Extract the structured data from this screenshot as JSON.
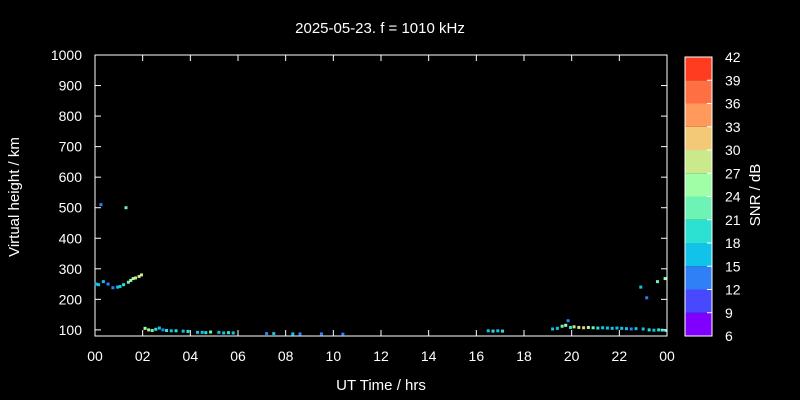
{
  "chart_data": {
    "type": "scatter",
    "title": "2025-05-23. f = 1010 kHz",
    "xlabel": "UT Time / hrs",
    "ylabel": "Virtual height / km",
    "colorbar_label": "SNR / dB",
    "xlim": [
      0,
      24
    ],
    "ylim": [
      80,
      1000
    ],
    "x_ticks": [
      "00",
      "02",
      "04",
      "06",
      "08",
      "10",
      "12",
      "14",
      "16",
      "18",
      "20",
      "22",
      "00"
    ],
    "y_ticks": [
      100,
      200,
      300,
      400,
      500,
      600,
      700,
      800,
      900,
      1000
    ],
    "colorbar_ticks": [
      6,
      9,
      12,
      15,
      18,
      21,
      24,
      27,
      30,
      33,
      36,
      39,
      42
    ],
    "colorbar_range": [
      6,
      42
    ],
    "grid": false,
    "legend": "colorbar-right",
    "background_color": "#000000",
    "text_color": "#ffffff",
    "colorbar_colors": [
      "#8000ff",
      "#4848ff",
      "#2f80f7",
      "#11c3e8",
      "#2de1d2",
      "#6df4b4",
      "#a0fea6",
      "#c9e98a",
      "#f3c978",
      "#ff9a5c",
      "#ff6f44",
      "#ff3b20"
    ],
    "points": [
      {
        "x": 0.05,
        "y": 250,
        "snr": 16
      },
      {
        "x": 0.15,
        "y": 248,
        "snr": 15
      },
      {
        "x": 0.25,
        "y": 510,
        "snr": 12
      },
      {
        "x": 0.35,
        "y": 258,
        "snr": 16
      },
      {
        "x": 0.55,
        "y": 250,
        "snr": 14
      },
      {
        "x": 0.75,
        "y": 238,
        "snr": 13
      },
      {
        "x": 0.95,
        "y": 240,
        "snr": 16
      },
      {
        "x": 1.05,
        "y": 242,
        "snr": 17
      },
      {
        "x": 1.2,
        "y": 248,
        "snr": 19
      },
      {
        "x": 1.3,
        "y": 500,
        "snr": 23
      },
      {
        "x": 1.4,
        "y": 256,
        "snr": 22
      },
      {
        "x": 1.5,
        "y": 262,
        "snr": 24
      },
      {
        "x": 1.6,
        "y": 268,
        "snr": 26
      },
      {
        "x": 1.7,
        "y": 270,
        "snr": 27
      },
      {
        "x": 1.85,
        "y": 275,
        "snr": 28
      },
      {
        "x": 1.95,
        "y": 280,
        "snr": 27
      },
      {
        "x": 2.1,
        "y": 105,
        "snr": 24
      },
      {
        "x": 2.25,
        "y": 100,
        "snr": 27
      },
      {
        "x": 2.4,
        "y": 98,
        "snr": 22
      },
      {
        "x": 2.55,
        "y": 102,
        "snr": 20
      },
      {
        "x": 2.7,
        "y": 106,
        "snr": 17
      },
      {
        "x": 2.85,
        "y": 100,
        "snr": 14
      },
      {
        "x": 3.0,
        "y": 98,
        "snr": 18
      },
      {
        "x": 3.2,
        "y": 97,
        "snr": 16
      },
      {
        "x": 3.4,
        "y": 97,
        "snr": 19
      },
      {
        "x": 3.7,
        "y": 96,
        "snr": 17
      },
      {
        "x": 3.9,
        "y": 95,
        "snr": 18
      },
      {
        "x": 4.3,
        "y": 92,
        "snr": 15
      },
      {
        "x": 4.5,
        "y": 92,
        "snr": 17
      },
      {
        "x": 4.65,
        "y": 91,
        "snr": 19
      },
      {
        "x": 4.85,
        "y": 93,
        "snr": 22
      },
      {
        "x": 5.2,
        "y": 92,
        "snr": 17
      },
      {
        "x": 5.4,
        "y": 90,
        "snr": 16
      },
      {
        "x": 5.6,
        "y": 91,
        "snr": 18
      },
      {
        "x": 5.8,
        "y": 90,
        "snr": 16
      },
      {
        "x": 7.2,
        "y": 88,
        "snr": 14
      },
      {
        "x": 7.5,
        "y": 88,
        "snr": 15
      },
      {
        "x": 8.3,
        "y": 87,
        "snr": 15
      },
      {
        "x": 8.6,
        "y": 87,
        "snr": 14
      },
      {
        "x": 9.5,
        "y": 87,
        "snr": 13
      },
      {
        "x": 10.4,
        "y": 86,
        "snr": 12
      },
      {
        "x": 16.5,
        "y": 97,
        "snr": 16
      },
      {
        "x": 16.7,
        "y": 96,
        "snr": 18
      },
      {
        "x": 16.9,
        "y": 97,
        "snr": 17
      },
      {
        "x": 17.1,
        "y": 96,
        "snr": 19
      },
      {
        "x": 19.2,
        "y": 103,
        "snr": 15
      },
      {
        "x": 19.4,
        "y": 105,
        "snr": 17
      },
      {
        "x": 19.6,
        "y": 112,
        "snr": 21
      },
      {
        "x": 19.75,
        "y": 115,
        "snr": 24
      },
      {
        "x": 19.85,
        "y": 130,
        "snr": 14
      },
      {
        "x": 19.95,
        "y": 108,
        "snr": 19
      },
      {
        "x": 20.1,
        "y": 110,
        "snr": 27
      },
      {
        "x": 20.3,
        "y": 108,
        "snr": 29
      },
      {
        "x": 20.5,
        "y": 107,
        "snr": 30
      },
      {
        "x": 20.7,
        "y": 108,
        "snr": 26
      },
      {
        "x": 20.9,
        "y": 107,
        "snr": 22
      },
      {
        "x": 21.1,
        "y": 106,
        "snr": 19
      },
      {
        "x": 21.3,
        "y": 107,
        "snr": 17
      },
      {
        "x": 21.5,
        "y": 106,
        "snr": 16
      },
      {
        "x": 21.7,
        "y": 105,
        "snr": 15
      },
      {
        "x": 21.9,
        "y": 106,
        "snr": 15
      },
      {
        "x": 22.1,
        "y": 105,
        "snr": 16
      },
      {
        "x": 22.3,
        "y": 104,
        "snr": 17
      },
      {
        "x": 22.5,
        "y": 103,
        "snr": 14
      },
      {
        "x": 22.7,
        "y": 104,
        "snr": 15
      },
      {
        "x": 22.9,
        "y": 240,
        "snr": 16
      },
      {
        "x": 23.0,
        "y": 103,
        "snr": 16
      },
      {
        "x": 23.15,
        "y": 205,
        "snr": 12
      },
      {
        "x": 23.25,
        "y": 100,
        "snr": 18
      },
      {
        "x": 23.45,
        "y": 99,
        "snr": 17
      },
      {
        "x": 23.6,
        "y": 258,
        "snr": 22
      },
      {
        "x": 23.65,
        "y": 100,
        "snr": 19
      },
      {
        "x": 23.8,
        "y": 99,
        "snr": 16
      },
      {
        "x": 23.92,
        "y": 268,
        "snr": 24
      },
      {
        "x": 23.95,
        "y": 98,
        "snr": 18
      }
    ]
  }
}
